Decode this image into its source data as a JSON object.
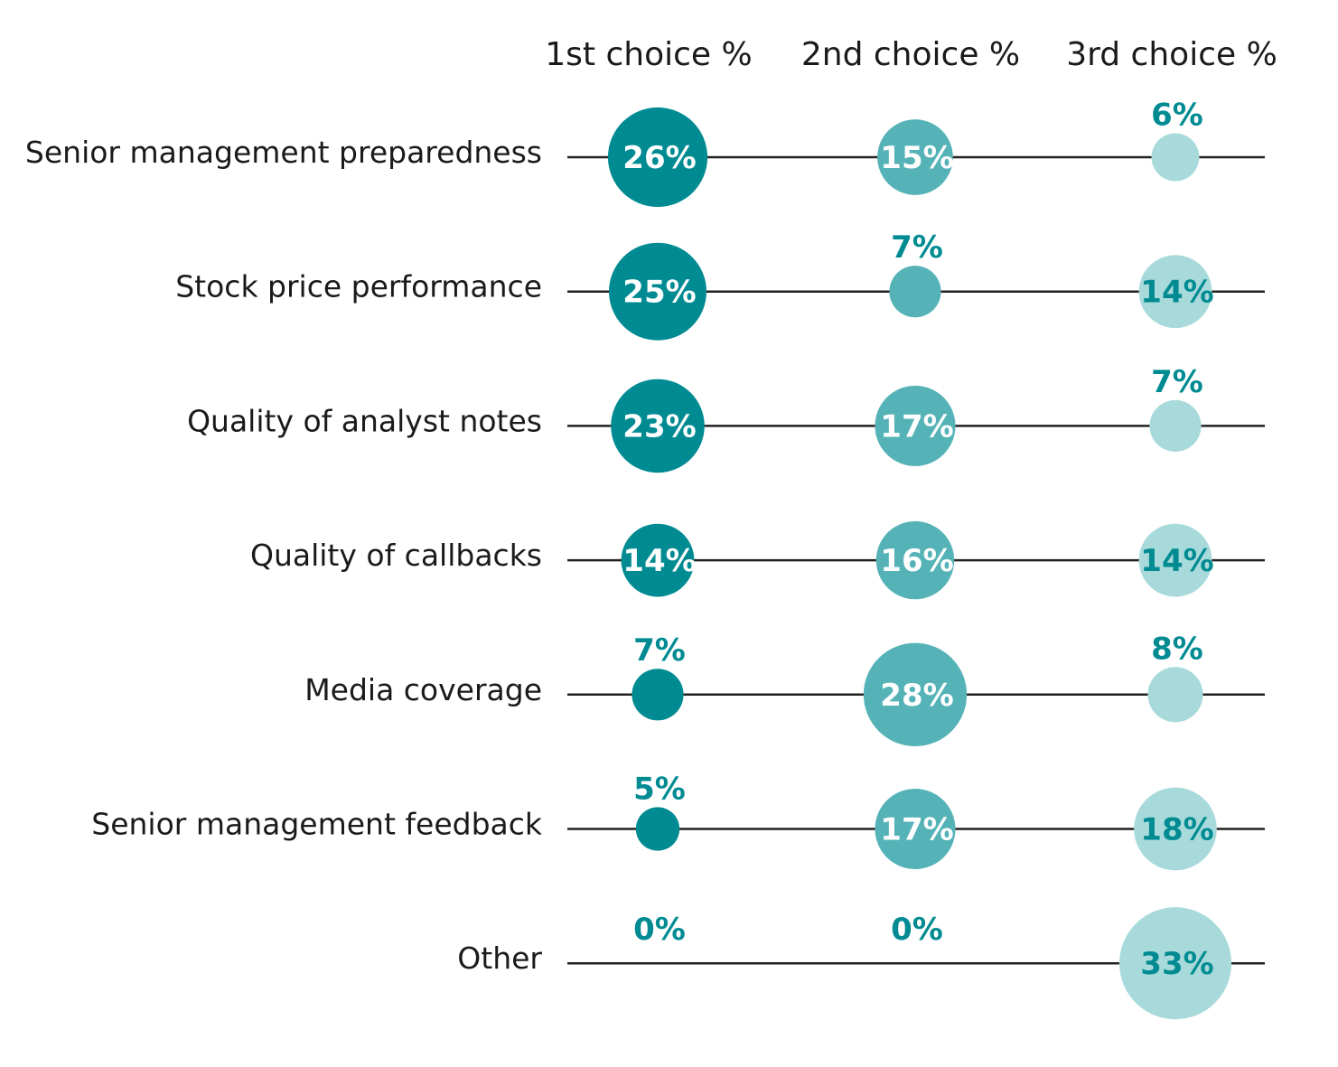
{
  "chart_data": {
    "type": "bubble-matrix",
    "columns": [
      "1st choice %",
      "2nd choice %",
      "3rd choice %"
    ],
    "rows": [
      {
        "label": "Senior management preparedness",
        "values": [
          26,
          15,
          6
        ]
      },
      {
        "label": "Stock price performance",
        "values": [
          25,
          7,
          14
        ]
      },
      {
        "label": "Quality of analyst notes",
        "values": [
          23,
          17,
          7
        ]
      },
      {
        "label": "Quality of callbacks",
        "values": [
          14,
          16,
          14
        ]
      },
      {
        "label": "Media coverage",
        "values": [
          7,
          28,
          8
        ]
      },
      {
        "label": "Senior management feedback",
        "values": [
          5,
          17,
          18
        ]
      },
      {
        "label": "Other",
        "values": [
          0,
          0,
          33
        ]
      }
    ],
    "value_suffix": "%",
    "colors": {
      "column_fills": [
        "#008b92",
        "#55b3b8",
        "#a9dadb"
      ],
      "label_inside": "#ffffff",
      "label_inside_light": "#008b92",
      "label_outside": "#008b92",
      "line": "#222222"
    }
  }
}
